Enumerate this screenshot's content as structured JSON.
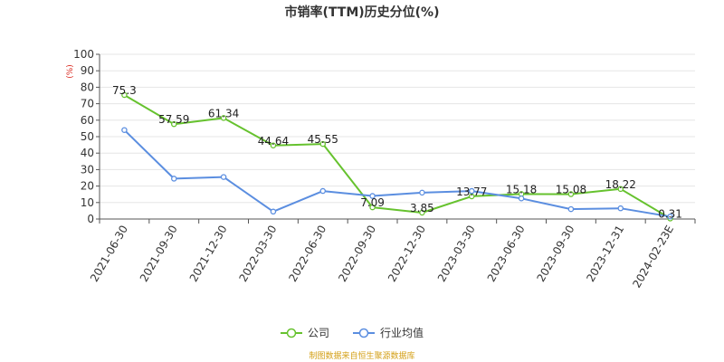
{
  "chart_data": {
    "type": "line",
    "title": "市销率(TTM)历史分位(%)",
    "y_unit_label": "(%)",
    "ylim": [
      0,
      100
    ],
    "y_ticks": [
      0,
      10,
      20,
      30,
      40,
      50,
      60,
      70,
      80,
      90,
      100
    ],
    "grid": true,
    "legend_position": "bottom",
    "categories": [
      "2021-06-30",
      "2021-09-30",
      "2021-12-30",
      "2022-03-30",
      "2022-06-30",
      "2022-09-30",
      "2022-12-30",
      "2023-03-30",
      "2023-06-30",
      "2023-09-30",
      "2023-12-31",
      "2024-02-23E"
    ],
    "series": [
      {
        "name": "公司",
        "color": "#66c22e",
        "values": [
          75.3,
          57.59,
          61.34,
          44.64,
          45.55,
          7.09,
          3.85,
          13.77,
          15.18,
          15.08,
          18.22,
          0.31
        ],
        "labels": [
          "75.3",
          "57.59",
          "61.34",
          "44.64",
          "45.55",
          "7.09",
          "3.85",
          "13.77",
          "15.18",
          "15.08",
          "18.22",
          "0.31"
        ]
      },
      {
        "name": "行业均值",
        "color": "#5b8ee0",
        "values": [
          54,
          24.5,
          25.5,
          4.5,
          17,
          14,
          16,
          17,
          12.5,
          6,
          6.5,
          1.5
        ]
      }
    ]
  },
  "source": "制图数据来自恒生聚源数据库",
  "colors": {
    "source_text": "#d4a017",
    "unit_text": "#d9261c",
    "grid": "#e5e5e5",
    "axis": "#555555"
  }
}
